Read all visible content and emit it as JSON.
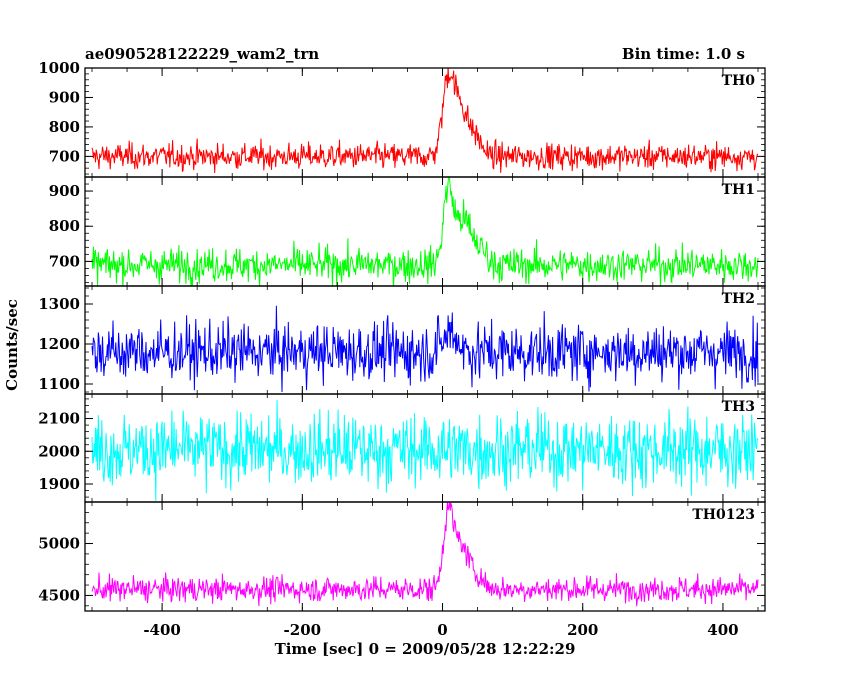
{
  "header": {
    "title": "ae090528122229_wam2_trn",
    "bin_time": "Bin time: 1.0 s"
  },
  "chart_data": {
    "type": "line",
    "xlabel": "Time [sec] 0 = 2009/05/28 12:22:29",
    "ylabel": "Counts/sec",
    "xlim": [
      -510,
      460
    ],
    "xticks": [
      -400,
      -200,
      0,
      200,
      400
    ],
    "x_range": [
      -500,
      450
    ],
    "bin_seconds": 1.0,
    "panels": [
      {
        "name": "TH0",
        "color": "#ff0000",
        "ylim": [
          630,
          1000
        ],
        "yticks": [
          700,
          800,
          900,
          1000
        ],
        "baseline": 700,
        "noise": 22,
        "peaks": [
          [
            8,
            260,
            8
          ],
          [
            25,
            160,
            9
          ],
          [
            45,
            70,
            10
          ]
        ]
      },
      {
        "name": "TH1",
        "color": "#00ff00",
        "ylim": [
          630,
          940
        ],
        "yticks": [
          700,
          800,
          900
        ],
        "baseline": 690,
        "noise": 24,
        "peaks": [
          [
            8,
            210,
            7
          ],
          [
            28,
            120,
            10
          ],
          [
            50,
            50,
            12
          ]
        ]
      },
      {
        "name": "TH2",
        "color": "#0000ff",
        "ylim": [
          1075,
          1345
        ],
        "yticks": [
          1100,
          1200,
          1300
        ],
        "baseline": 1180,
        "noise": 36,
        "peaks": [
          [
            12,
            50,
            10
          ]
        ]
      },
      {
        "name": "TH3",
        "color": "#00ffff",
        "ylim": [
          1845,
          2175
        ],
        "yticks": [
          1900,
          2000,
          2100
        ],
        "baseline": 2005,
        "noise": 55,
        "peaks": []
      },
      {
        "name": "TH0123",
        "color": "#ff00ff",
        "ylim": [
          4350,
          5400
        ],
        "yticks": [
          4500,
          5000
        ],
        "baseline": 4560,
        "noise": 60,
        "peaks": [
          [
            8,
            720,
            7
          ],
          [
            25,
            400,
            9
          ],
          [
            45,
            160,
            11
          ]
        ]
      }
    ]
  }
}
